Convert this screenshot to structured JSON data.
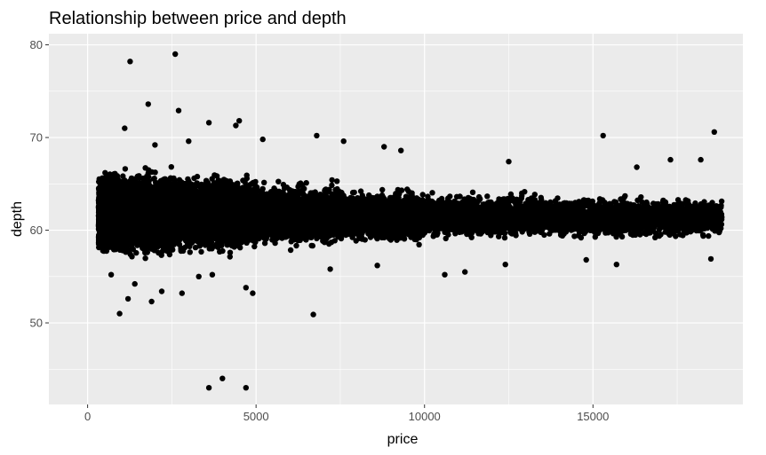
{
  "chart_data": {
    "type": "scatter",
    "title": "Relationship between price and depth",
    "xlabel": "price",
    "ylabel": "depth",
    "xlim": [
      -1150,
      19450
    ],
    "ylim": [
      41.2,
      81.2
    ],
    "x_ticks": [
      {
        "value": 0,
        "label": "0"
      },
      {
        "value": 5000,
        "label": "5000"
      },
      {
        "value": 10000,
        "label": "10000"
      },
      {
        "value": 15000,
        "label": "15000"
      }
    ],
    "y_ticks": [
      {
        "value": 50,
        "label": "50"
      },
      {
        "value": 60,
        "label": "60"
      },
      {
        "value": 70,
        "label": "70"
      },
      {
        "value": 80,
        "label": "80"
      }
    ],
    "grid": true,
    "point_color": "#000000",
    "panel_color": "#ebebeb",
    "grid_color": "#ffffff",
    "bulk_bands": [
      {
        "x": [
          326,
          1000
        ],
        "y": [
          56.5,
          67.0
        ],
        "n": 2600
      },
      {
        "x": [
          1000,
          3000
        ],
        "y": [
          56.0,
          67.5
        ],
        "n": 3400
      },
      {
        "x": [
          3000,
          5000
        ],
        "y": [
          56.5,
          67.0
        ],
        "n": 2800
      },
      {
        "x": [
          5000,
          7500
        ],
        "y": [
          57.5,
          66.0
        ],
        "n": 2000
      },
      {
        "x": [
          7500,
          10000
        ],
        "y": [
          58.0,
          65.0
        ],
        "n": 1700
      },
      {
        "x": [
          10000,
          14000
        ],
        "y": [
          58.5,
          64.5
        ],
        "n": 1700
      },
      {
        "x": [
          14000,
          18823
        ],
        "y": [
          58.5,
          64.2
        ],
        "n": 1800
      }
    ],
    "outliers": [
      {
        "x": 1262,
        "y": 78.2
      },
      {
        "x": 2600,
        "y": 79.0
      },
      {
        "x": 1800,
        "y": 73.6
      },
      {
        "x": 2700,
        "y": 72.9
      },
      {
        "x": 3600,
        "y": 71.6
      },
      {
        "x": 4500,
        "y": 71.8
      },
      {
        "x": 4400,
        "y": 71.3
      },
      {
        "x": 15300,
        "y": 70.2
      },
      {
        "x": 18600,
        "y": 70.6
      },
      {
        "x": 1100,
        "y": 71.0
      },
      {
        "x": 6800,
        "y": 70.2
      },
      {
        "x": 7600,
        "y": 69.6
      },
      {
        "x": 8800,
        "y": 69.0
      },
      {
        "x": 9300,
        "y": 68.6
      },
      {
        "x": 12500,
        "y": 67.4
      },
      {
        "x": 17300,
        "y": 67.6
      },
      {
        "x": 18200,
        "y": 67.6
      },
      {
        "x": 16300,
        "y": 66.8
      },
      {
        "x": 2000,
        "y": 69.2
      },
      {
        "x": 3000,
        "y": 69.6
      },
      {
        "x": 5200,
        "y": 69.8
      },
      {
        "x": 950,
        "y": 51.0
      },
      {
        "x": 1200,
        "y": 52.6
      },
      {
        "x": 1900,
        "y": 52.3
      },
      {
        "x": 2200,
        "y": 53.4
      },
      {
        "x": 2800,
        "y": 53.2
      },
      {
        "x": 3700,
        "y": 55.2
      },
      {
        "x": 4700,
        "y": 53.8
      },
      {
        "x": 4900,
        "y": 53.2
      },
      {
        "x": 6700,
        "y": 50.9
      },
      {
        "x": 3600,
        "y": 43.0
      },
      {
        "x": 4000,
        "y": 44.0
      },
      {
        "x": 4700,
        "y": 43.0
      },
      {
        "x": 10600,
        "y": 55.2
      },
      {
        "x": 11200,
        "y": 55.5
      },
      {
        "x": 15700,
        "y": 56.3
      },
      {
        "x": 14800,
        "y": 56.8
      },
      {
        "x": 18500,
        "y": 56.9
      },
      {
        "x": 7200,
        "y": 55.8
      },
      {
        "x": 8600,
        "y": 56.2
      },
      {
        "x": 12400,
        "y": 56.3
      },
      {
        "x": 700,
        "y": 55.2
      },
      {
        "x": 1400,
        "y": 54.2
      },
      {
        "x": 3300,
        "y": 55.0
      }
    ]
  }
}
